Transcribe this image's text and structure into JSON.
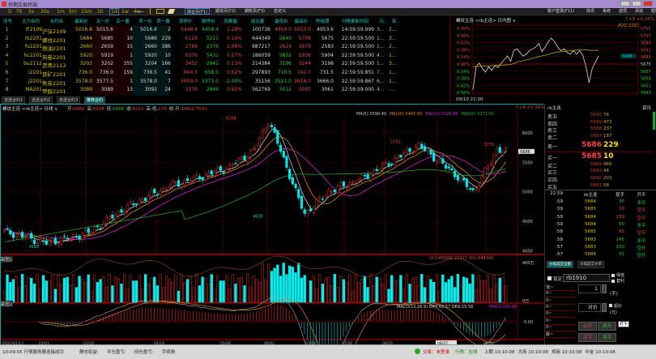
{
  "window": {
    "title": "快期交易终端"
  },
  "toolbar": {
    "periods": [
      "D",
      "TK",
      "5s",
      "30s",
      "1m",
      "5m",
      "15m",
      "1h",
      "1d",
      "1w",
      "4w"
    ],
    "selected_period": "1d",
    "tabs": [
      "综合页(F1)",
      "期货页(F2)",
      "期权页(F3)",
      "自定义"
    ],
    "right_menu": [
      "账户登录(F11)",
      "快讯",
      "系统",
      "选项",
      "添加",
      "帮助"
    ]
  },
  "quote_table": {
    "headers": [
      "序号",
      "主力合约",
      "合约名",
      "最新价",
      "买一价",
      "买一量",
      "卖一价",
      "卖一量",
      "涨停价",
      "跌停价",
      "涨跌幅",
      "成交量",
      "最低价",
      "最高价",
      "昨结算",
      "行情更新时间",
      "沉...",
      "涨..."
    ],
    "rows": [
      [
        "1",
        "IF2109",
        "沪深2109",
        "5016.8",
        "5015.6",
        "4",
        "5016.6",
        "2",
        "5448.8",
        "4458.4",
        "1.28%",
        "100736",
        "4959.0",
        "5053.0",
        "4953.6",
        "14:59:59.999",
        "3...",
        "2..."
      ],
      [
        "2",
        "rb2201",
        "螺纹2201",
        "5684",
        "5685",
        "10",
        "5686",
        "229",
        "6129",
        "5221",
        "0.16%",
        "644349",
        "5640",
        "5708",
        "5675",
        "22:59:59.500",
        "1...",
        "3..."
      ],
      [
        "3",
        "fu2201",
        "燃油2201",
        "2660",
        "2659",
        "15",
        "2660",
        "386",
        "2789",
        "2376",
        "2.98%",
        "687217",
        "2624",
        "2679",
        "2583",
        "22:59:59.500",
        "1...",
        "2..."
      ],
      [
        "4",
        "hc2201",
        "热卷2201",
        "5920",
        "5919",
        "1",
        "5920",
        "10",
        "6376",
        "5431",
        "0.27%",
        "186059",
        "5852",
        "5936",
        "5904",
        "22:59:59.500",
        "4...",
        "1..."
      ],
      [
        "5",
        "bu2112",
        "沥青2112",
        "3202",
        "3202",
        "355",
        "3204",
        "166",
        "3452",
        "2942",
        "0.13%",
        "214384",
        "3196",
        "3244",
        "3198",
        "22:59:59.500",
        "1...",
        "3..."
      ],
      [
        "6",
        "i2201",
        "铁矿2201",
        "736.0",
        "736.0",
        "159",
        "736.5",
        "41",
        "804.5",
        "658.5",
        "0.62%",
        "297893",
        "718.5",
        "742.0",
        "731.5",
        "22:59:59.851",
        "7...",
        "1..."
      ],
      [
        "7",
        "j2201",
        "焦炭2201",
        "3578.0",
        "3577.5",
        "1",
        "3578.0",
        "7",
        "3959.0",
        "3373.0",
        "-2.40%",
        "35156",
        "3521.0",
        "3618.0",
        "3666.0",
        "22:59:59.867",
        "6...",
        "1..."
      ],
      [
        "8",
        "MA201",
        "甲醇2201",
        "3089",
        "3089",
        "13",
        "3092",
        "24",
        "3276",
        "2846",
        "0.91%",
        "562769",
        "3012",
        "3097",
        "3061",
        "22:59:59.000",
        "4...",
        "-..."
      ]
    ],
    "bottom_tabs": [
      "自选合约1",
      "自选合约2",
      "自选合约3",
      "推荐合约"
    ],
    "selected_tab": "推荐合约"
  },
  "intraday": {
    "header": "螺纹主连 <rb主连> 日内图 ∨",
    "change": "↑+9 +0.16%",
    "avg": "AVG 5681",
    "pct_ticks": [
      "0.70%",
      "0.56%",
      "0.42%",
      "0.28%",
      "0.14%",
      "0.00%",
      "-0.14%",
      "-0.28%",
      "-0.42%",
      "-0.56%"
    ],
    "price_ticks": [
      "5715",
      "5707",
      "5699",
      "5691",
      "5683",
      "5675",
      "5667",
      "5659",
      "5651",
      "5643"
    ],
    "current": "5684",
    "time_label": "09/10 21:00",
    "prices": [
      5646,
      5672,
      5676,
      5670,
      5666,
      5672,
      5668,
      5673,
      5671,
      5676,
      5680,
      5684,
      5678,
      5690,
      5692,
      5688,
      5684,
      5686,
      5690,
      5692,
      5694,
      5698,
      5689,
      5694,
      5700,
      5704,
      5700,
      5694,
      5690,
      5692,
      5688,
      5686,
      5690,
      5686,
      5690,
      5685,
      5672,
      5654,
      5670,
      5677,
      5684
    ]
  },
  "main_chart": {
    "header": "螺纹主连 <rb主连> 日线 ∨",
    "ohlc": [
      {
        "k": "开:",
        "v": "5082"
      },
      {
        "k": "高:",
        "v": "5238"
      },
      {
        "k": "低:",
        "v": "5068"
      },
      {
        "k": "收:",
        "v": "5222"
      },
      {
        "k": "高-低:",
        "v": "170"
      },
      {
        "k": "收-开:",
        "v": "140(2.75%)"
      }
    ],
    "change": "↑+9 +0.16%",
    "ma": [
      {
        "label": "MA(5) 5590.40",
        "color": "#c8c8c8"
      },
      {
        "label": "MA(10) 5465.60",
        "color": "#e08020"
      },
      {
        "label": "MA(20) 5325.95",
        "color": "#d020d0"
      },
      {
        "label": "MA(60) 5371.02",
        "color": "#20b020"
      }
    ],
    "price_ticks": [
      "6000",
      "5500",
      "5000",
      "4500",
      "4000"
    ],
    "current_price": "5686",
    "annotations": [
      "6208",
      "4626",
      "5791",
      "5731",
      "4126"
    ],
    "keypoints": [
      [
        0,
        4330
      ],
      [
        14,
        4126
      ],
      [
        28,
        4300
      ],
      [
        40,
        4720
      ],
      [
        55,
        5100
      ],
      [
        65,
        5250
      ],
      [
        75,
        5420
      ],
      [
        83,
        5700
      ],
      [
        88,
        6208
      ],
      [
        92,
        5700
      ],
      [
        97,
        5000
      ],
      [
        100,
        4626
      ],
      [
        108,
        5000
      ],
      [
        120,
        5250
      ],
      [
        130,
        5550
      ],
      [
        138,
        5791
      ],
      [
        150,
        5300
      ],
      [
        156,
        5000
      ],
      [
        162,
        5500
      ],
      [
        164,
        5731
      ],
      [
        167,
        5686
      ]
    ],
    "vol_panel_label": "副图1",
    "vol_info": "OI:1460096 27417 VOL:644349",
    "vol_ticks": [
      "400万",
      "0万"
    ],
    "macd_panel_label": "副图2",
    "macd_info": "MACD(12,26,9) DIFF:60.57 DEA:15.58",
    "macd_value": "MACD:105.98",
    "macd_zero": "0.00",
    "x_ticks": [
      "2021/01/13",
      "02/01",
      "03/16",
      "04/16",
      "05/06",
      "06/01",
      "07/01",
      "07/26",
      "08/16",
      "08/27",
      "09/16"
    ],
    "x_highlight": "08/27"
  },
  "depth": {
    "title": "rb主连",
    "tab": "资讯",
    "asks": [
      [
        "卖五",
        "5690",
        "76"
      ],
      [
        "卖四",
        "5689",
        "473"
      ],
      [
        "卖三",
        "5688",
        "237"
      ],
      [
        "卖二",
        "5687",
        "187"
      ],
      [
        "卖一",
        "5686",
        "229"
      ]
    ],
    "bids": [
      [
        "买一",
        "5685",
        "10"
      ],
      [
        "买二",
        "5684",
        "465"
      ],
      [
        "买三",
        "5683",
        "44"
      ],
      [
        "买四",
        "5682",
        "203"
      ],
      [
        "买五",
        "5681",
        "58"
      ]
    ]
  },
  "ticks": {
    "headers": [
      "22:59",
      "rb主连",
      "现手",
      "开平"
    ],
    "rows": [
      [
        ":59",
        "5684",
        "35",
        "多平",
        "g"
      ],
      [
        ":59",
        "5685",
        "29",
        "空平",
        "r"
      ],
      [
        ":59",
        "5684",
        "239",
        "空平",
        "r"
      ],
      [
        ":59",
        "5684",
        "60",
        "多平",
        "g"
      ],
      [
        ":58",
        "5685",
        "95",
        "空平",
        "r"
      ],
      [
        ":58",
        "5683",
        "145",
        "多平",
        "g"
      ],
      [
        ":57",
        "5683",
        "150",
        "空开",
        "g"
      ],
      [
        ":57",
        "5684",
        "31",
        "空开",
        "g"
      ]
    ],
    "tabs": [
      "分笔成交全部",
      "分笔成交大单"
    ]
  },
  "order": {
    "lock_label": "锁定",
    "contract": "rb1910",
    "opt1": "保值",
    "opt2": "套利",
    "qty": "1",
    "qty_unit": "(手)",
    "price": "对价",
    "price_opt": "超价",
    "price_unit": "(元)",
    "levels": [
      "涨~",
      "0~",
      "0~",
      "0~",
      "0~",
      "0~",
      "0~",
      "跌~"
    ],
    "buy_open": "买开",
    "sell_open": "卖开",
    "buy_close": "买平",
    "sell_close": "卖平",
    "close_today": "对平"
  },
  "status": {
    "message": "10:09:05 行情服务器连接成功",
    "fields": [
      "静态权益:",
      "平仓盈亏:",
      "持仓盈亏:",
      "手续费:"
    ],
    "trade_state": "交易：未登录",
    "quote_state": "行情：在线",
    "exchanges": [
      "上期 10:10:08",
      "大商 10:10:08",
      "郑商 10:10:08",
      "中金 10:10:08"
    ]
  }
}
